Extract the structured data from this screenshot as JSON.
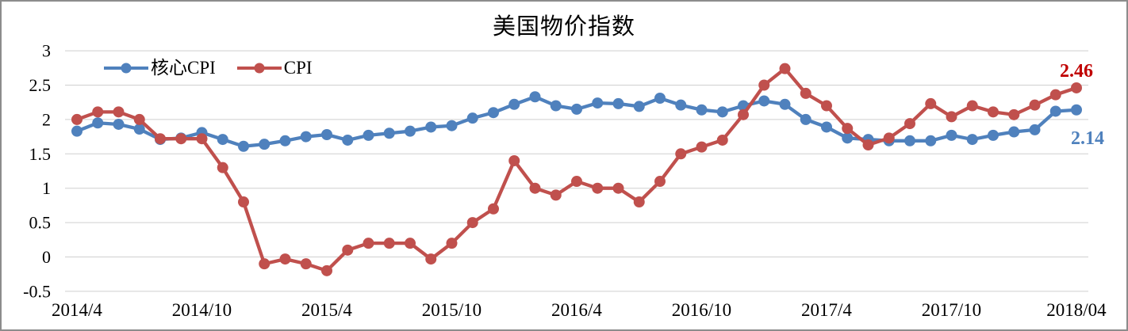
{
  "chart_data": {
    "type": "line",
    "title": "美国物价指数",
    "grid": "horizontal-only",
    "legend_position": "top-left-inside",
    "ylim": [
      -0.5,
      3
    ],
    "y_tick_values": [
      3,
      2.5,
      2,
      1.5,
      1,
      0.5,
      0,
      -0.5
    ],
    "y_tick_labels": [
      "3",
      "2.5",
      "2",
      "1.5",
      "1",
      "0.5",
      "0",
      "-0.5"
    ],
    "x_tick_labels": [
      "2014/4",
      "2014/10",
      "2015/4",
      "2015/10",
      "2016/4",
      "2016/10",
      "2017/4",
      "2017/10",
      "2018/04"
    ],
    "x_tick_month_index": [
      0,
      6,
      12,
      18,
      24,
      30,
      36,
      42,
      48
    ],
    "x": [
      "2014/4",
      "2014/5",
      "2014/6",
      "2014/7",
      "2014/8",
      "2014/9",
      "2014/10",
      "2014/11",
      "2014/12",
      "2015/1",
      "2015/2",
      "2015/3",
      "2015/4",
      "2015/5",
      "2015/6",
      "2015/7",
      "2015/8",
      "2015/9",
      "2015/10",
      "2015/11",
      "2015/12",
      "2016/1",
      "2016/2",
      "2016/3",
      "2016/4",
      "2016/5",
      "2016/6",
      "2016/7",
      "2016/8",
      "2016/9",
      "2016/10",
      "2016/11",
      "2016/12",
      "2017/1",
      "2017/2",
      "2017/3",
      "2017/4",
      "2017/5",
      "2017/6",
      "2017/7",
      "2017/8",
      "2017/9",
      "2017/10",
      "2017/11",
      "2017/12",
      "2018/1",
      "2018/2",
      "2018/3",
      "2018/4"
    ],
    "series": [
      {
        "name": "核心CPI",
        "color": "#4F81BD",
        "marker": "circle",
        "values": [
          1.83,
          1.95,
          1.93,
          1.86,
          1.71,
          1.73,
          1.81,
          1.71,
          1.61,
          1.64,
          1.69,
          1.75,
          1.78,
          1.7,
          1.77,
          1.8,
          1.83,
          1.89,
          1.91,
          2.02,
          2.1,
          2.22,
          2.33,
          2.2,
          2.15,
          2.24,
          2.23,
          2.19,
          2.31,
          2.21,
          2.14,
          2.11,
          2.2,
          2.27,
          2.22,
          2.0,
          1.89,
          1.73,
          1.71,
          1.69,
          1.69,
          1.69,
          1.77,
          1.71,
          1.77,
          1.82,
          1.85,
          2.12,
          2.14
        ]
      },
      {
        "name": "CPI",
        "color": "#C0504D",
        "marker": "circle",
        "values": [
          2.0,
          2.11,
          2.11,
          2.0,
          1.72,
          1.72,
          1.72,
          1.3,
          0.8,
          -0.1,
          -0.03,
          -0.1,
          -0.2,
          0.1,
          0.2,
          0.2,
          0.2,
          -0.03,
          0.2,
          0.5,
          0.7,
          1.4,
          1.0,
          0.9,
          1.1,
          1.0,
          1.0,
          0.8,
          1.1,
          1.5,
          1.6,
          1.7,
          2.07,
          2.5,
          2.74,
          2.38,
          2.2,
          1.87,
          1.63,
          1.73,
          1.94,
          2.23,
          2.04,
          2.2,
          2.11,
          2.07,
          2.21,
          2.36,
          2.46
        ]
      }
    ],
    "annotations": [
      {
        "text": "2.46",
        "series": "CPI",
        "color": "#C00000"
      },
      {
        "text": "2.14",
        "series": "核心CPI",
        "color": "#4F81BD"
      }
    ]
  },
  "colors": {
    "background": "#FFFFFF",
    "gridline": "#CFCFCF",
    "axis_text": "#000000",
    "frame_border": "#8C8C8C"
  }
}
